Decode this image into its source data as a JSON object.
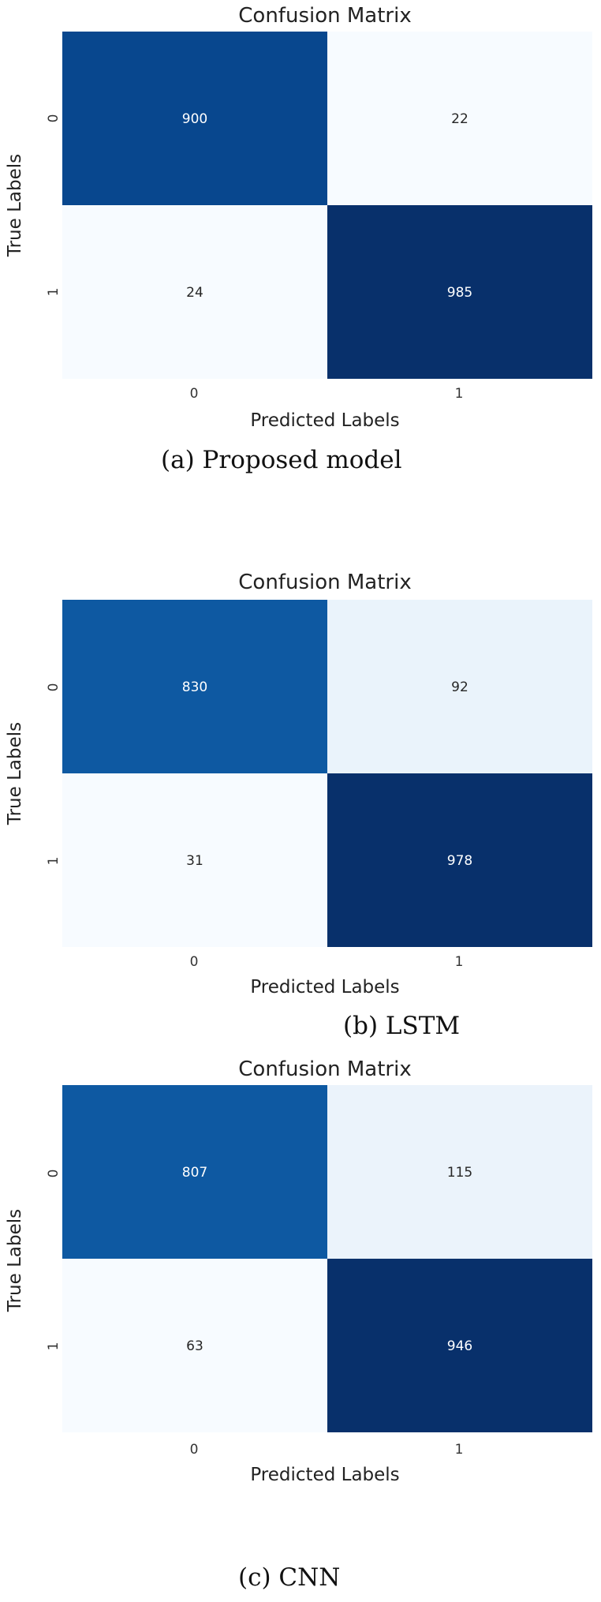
{
  "chart_data": [
    {
      "type": "heatmap",
      "title": "Confusion Matrix",
      "xlabel": "Predicted Labels",
      "ylabel": "True Labels",
      "x_ticks": [
        "0",
        "1"
      ],
      "y_ticks": [
        "0",
        "1"
      ],
      "values": [
        [
          900,
          22
        ],
        [
          24,
          985
        ]
      ],
      "colormap": "Blues",
      "caption": "(a) Proposed model"
    },
    {
      "type": "heatmap",
      "title": "Confusion Matrix",
      "xlabel": "Predicted Labels",
      "ylabel": "True Labels",
      "x_ticks": [
        "0",
        "1"
      ],
      "y_ticks": [
        "0",
        "1"
      ],
      "values": [
        [
          830,
          92
        ],
        [
          31,
          978
        ]
      ],
      "colormap": "Blues",
      "caption": "(b) LSTM"
    },
    {
      "type": "heatmap",
      "title": "Confusion Matrix",
      "xlabel": "Predicted Labels",
      "ylabel": "True Labels",
      "x_ticks": [
        "0",
        "1"
      ],
      "y_ticks": [
        "0",
        "1"
      ],
      "values": [
        [
          807,
          115
        ],
        [
          63,
          946
        ]
      ],
      "colormap": "Blues",
      "caption": "(c) CNN"
    }
  ]
}
